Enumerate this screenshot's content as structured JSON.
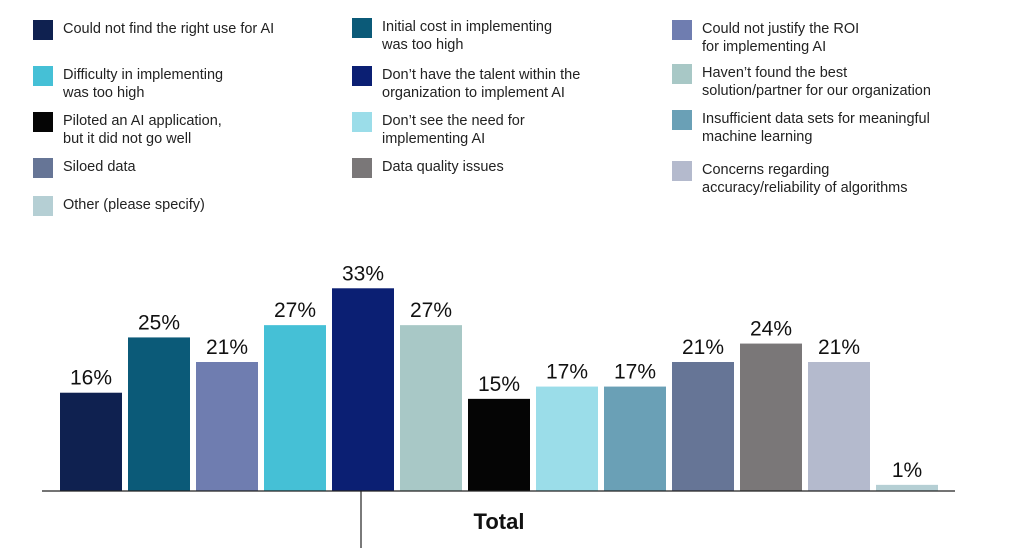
{
  "chart_data": {
    "type": "bar",
    "xlabel": "Total",
    "ylim": [
      0,
      35
    ],
    "value_suffix": "%",
    "series": [
      {
        "name": "Could not find the right use for AI",
        "value": 16,
        "color": "#0f2150"
      },
      {
        "name": "Initial cost in implementing\nwas too high",
        "value": 25,
        "color": "#0b5a78"
      },
      {
        "name": "Could not justify the ROI\nfor implementing AI",
        "value": 21,
        "color": "#6f7db0"
      },
      {
        "name": "Difficulty in implementing\nwas too high",
        "value": 27,
        "color": "#45c0d6"
      },
      {
        "name": "Don’t have the talent within the\norganization to implement AI",
        "value": 33,
        "color": "#0b1f73"
      },
      {
        "name": "Haven’t found the best\nsolution/partner for our organization",
        "value": 27,
        "color": "#a8c8c6"
      },
      {
        "name": "Piloted an AI application,\nbut it did not go well",
        "value": 15,
        "color": "#050505"
      },
      {
        "name": "Don’t see the need for\nimplementing AI",
        "value": 17,
        "color": "#9bdde9"
      },
      {
        "name": "Insufficient data sets for meaningful\nmachine learning",
        "value": 17,
        "color": "#6aa0b6"
      },
      {
        "name": "Siloed data",
        "value": 21,
        "color": "#667596"
      },
      {
        "name": "Data quality issues",
        "value": 24,
        "color": "#7a7778"
      },
      {
        "name": "Concerns regarding\naccuracy/reliability of algorithms",
        "value": 21,
        "color": "#b4bacd"
      },
      {
        "name": "Other (please specify)",
        "value": 1,
        "color": "#b5cfd4"
      }
    ]
  },
  "legend_order": [
    0,
    3,
    6,
    9,
    12,
    1,
    4,
    7,
    10,
    2,
    5,
    8,
    11
  ]
}
